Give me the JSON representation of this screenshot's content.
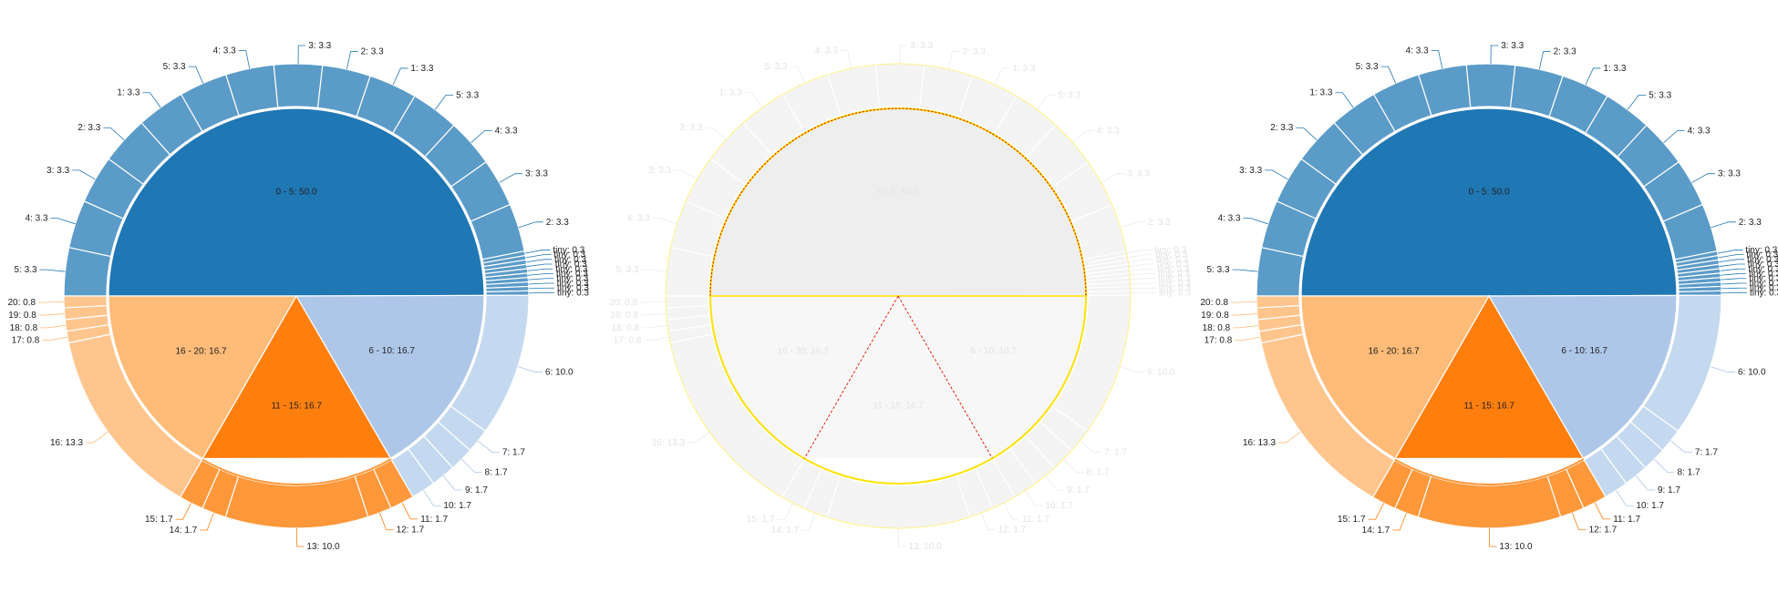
{
  "chart_data": [
    {
      "type": "pie",
      "panel": "left",
      "center_label": "",
      "inner_slices": [
        {
          "label": "0 - 5: 50.0",
          "value": 50.0,
          "color": "#1f77b4"
        },
        {
          "label": "6 - 10: 16.7",
          "value": 16.7,
          "color": "#aec7e8"
        },
        {
          "label": "11 - 15: 16.7",
          "value": 16.7,
          "color": "#ff7f0e"
        },
        {
          "label": "16 - 20: 16.7",
          "value": 16.7,
          "color": "#ffbb78"
        }
      ],
      "outer_slices": [
        {
          "label": "5: 3.3",
          "value": 3.3,
          "group": 0
        },
        {
          "label": "4: 3.3",
          "value": 3.3,
          "group": 0
        },
        {
          "label": "3: 3.3",
          "value": 3.3,
          "group": 0
        },
        {
          "label": "2: 3.3",
          "value": 3.3,
          "group": 0
        },
        {
          "label": "1: 3.3",
          "value": 3.3,
          "group": 0
        },
        {
          "label": "5: 3.3",
          "value": 3.3,
          "group": 0
        },
        {
          "label": "4: 3.3",
          "value": 3.3,
          "group": 0
        },
        {
          "label": "3: 3.3",
          "value": 3.3,
          "group": 0
        },
        {
          "label": "2: 3.3",
          "value": 3.3,
          "group": 0
        },
        {
          "label": "1: 3.3",
          "value": 3.3,
          "group": 0
        },
        {
          "label": "5: 3.3",
          "value": 3.3,
          "group": 0
        },
        {
          "label": "4: 3.3",
          "value": 3.3,
          "group": 0
        },
        {
          "label": "3: 3.3",
          "value": 3.3,
          "group": 0
        },
        {
          "label": "2: 3.3",
          "value": 3.3,
          "group": 0
        },
        {
          "label": "tiny: 0.3",
          "value": 0.3,
          "group": 0
        },
        {
          "label": "tiny: 0.3",
          "value": 0.3,
          "group": 0
        },
        {
          "label": "tiny: 0.3",
          "value": 0.3,
          "group": 0
        },
        {
          "label": "tiny: 0.3",
          "value": 0.3,
          "group": 0
        },
        {
          "label": "tiny: 0.3",
          "value": 0.3,
          "group": 0
        },
        {
          "label": "tiny: 0.3",
          "value": 0.3,
          "group": 0
        },
        {
          "label": "tiny: 0.3",
          "value": 0.3,
          "group": 0
        },
        {
          "label": "tiny: 0.3",
          "value": 0.3,
          "group": 0
        },
        {
          "label": "tiny: 0.3",
          "value": 0.3,
          "group": 0
        },
        {
          "label": "tiny: 0.3",
          "value": 0.3,
          "group": 0
        },
        {
          "label": "6: 10.0",
          "value": 10.0,
          "group": 1
        },
        {
          "label": "7: 1.7",
          "value": 1.7,
          "group": 1
        },
        {
          "label": "8: 1.7",
          "value": 1.7,
          "group": 1
        },
        {
          "label": "9: 1.7",
          "value": 1.7,
          "group": 1
        },
        {
          "label": "10: 1.7",
          "value": 1.7,
          "group": 1
        },
        {
          "label": "11: 1.7",
          "value": 1.7,
          "group": 2
        },
        {
          "label": "12: 1.7",
          "value": 1.7,
          "group": 2
        },
        {
          "label": "13: 10.0",
          "value": 10.0,
          "group": 2
        },
        {
          "label": "14: 1.7",
          "value": 1.7,
          "group": 2
        },
        {
          "label": "15: 1.7",
          "value": 1.7,
          "group": 2
        },
        {
          "label": "16: 13.3",
          "value": 13.3,
          "group": 3
        },
        {
          "label": "17: 0.8",
          "value": 0.8,
          "group": 3
        },
        {
          "label": "18: 0.8",
          "value": 0.8,
          "group": 3
        },
        {
          "label": "19: 0.8",
          "value": 0.8,
          "group": 3
        },
        {
          "label": "20: 0.8",
          "value": 0.8,
          "group": 3
        }
      ]
    },
    {
      "type": "pie",
      "panel": "middle",
      "note_visible_only_as_faint_difference_overlay": true,
      "inner_slices": [
        {
          "label": "0 - 5: 50.0",
          "value": 50.0
        },
        {
          "label": "6 - 10: 16.7",
          "value": 16.7
        },
        {
          "label": "11 - 15: 16.7",
          "value": 16.7
        },
        {
          "label": "16 - 20: 16.7",
          "value": 16.7
        }
      ]
    },
    {
      "type": "pie",
      "panel": "right",
      "inner_slices": [
        {
          "label": "0 - 5: 50.0",
          "value": 50.0,
          "color": "#1f77b4"
        },
        {
          "label": "6 - 10: 16.7",
          "value": 16.7,
          "color": "#aec7e8"
        },
        {
          "label": "11 - 15: 16.7",
          "value": 16.7,
          "color": "#ff7f0e"
        },
        {
          "label": "16 - 20: 16.7",
          "value": 16.7,
          "color": "#ffbb78"
        }
      ]
    }
  ],
  "colors": {
    "outer_group0": "#5b9bc8",
    "outer_group1": "#c4d9ef",
    "outer_group2": "#ff983a",
    "outer_group3": "#ffc58d",
    "leader_group0": "#1f77b4",
    "leader_group1": "#aec7e8",
    "leader_group2": "#ff7f0e",
    "leader_group3": "#ffbb78",
    "diff_bg": "#f2f2f2",
    "diff_line_major": "#e0220b",
    "diff_line_minor": "#ffe100"
  }
}
